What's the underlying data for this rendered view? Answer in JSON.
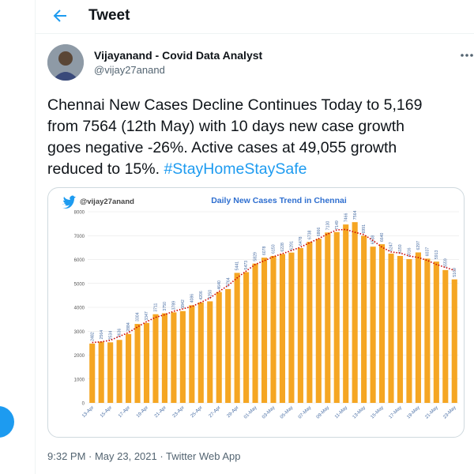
{
  "header": {
    "title": "Tweet"
  },
  "tweet": {
    "author_name": "Vijayanand - Covid Data Analyst",
    "author_handle": "@vijay27anand",
    "text_lines": [
      "Chennai New Cases Decline Continues Today to 5,169",
      "from 7564 (12th May) with 10 days new case growth",
      "goes negative -26%. Active cases at 49,055 growth",
      "reduced to 15%. "
    ],
    "hashtag": "#StayHomeStaySafe",
    "meta": "9:32 PM · May 23, 2021 · Twitter Web App"
  },
  "chart_data": {
    "type": "bar",
    "title": "Daily New Cases Trend in Chennai",
    "watermark": "@vijay27anand",
    "ylim": [
      0,
      8000
    ],
    "yticks": [
      0,
      1000,
      2000,
      3000,
      4000,
      5000,
      6000,
      7000,
      8000
    ],
    "grid": true,
    "bar_color": "#f5a623",
    "trend_color": "#cc0000",
    "categories": [
      "13-Apr",
      "14-Apr",
      "15-Apr",
      "16-Apr",
      "17-Apr",
      "18-Apr",
      "19-Apr",
      "20-Apr",
      "21-Apr",
      "22-Apr",
      "23-Apr",
      "24-Apr",
      "25-Apr",
      "26-Apr",
      "27-Apr",
      "28-Apr",
      "29-Apr",
      "30-Apr",
      "01-May",
      "02-May",
      "03-May",
      "04-May",
      "05-May",
      "06-May",
      "07-May",
      "08-May",
      "09-May",
      "10-May",
      "11-May",
      "12-May",
      "13-May",
      "14-May",
      "15-May",
      "16-May",
      "17-May",
      "18-May",
      "19-May",
      "20-May",
      "21-May",
      "22-May",
      "23-May"
    ],
    "x_tick_labels": [
      "13-Apr",
      "",
      "15-Apr",
      "",
      "17-Apr",
      "",
      "19-Apr",
      "",
      "21-Apr",
      "",
      "23-Apr",
      "",
      "25-Apr",
      "",
      "27-Apr",
      "",
      "29-Apr",
      "",
      "01-May",
      "",
      "03-May",
      "",
      "05-May",
      "",
      "07-May",
      "",
      "09-May",
      "",
      "11-May",
      "",
      "13-May",
      "",
      "15-May",
      "",
      "17-May",
      "",
      "19-May",
      "",
      "21-May",
      "",
      "23-May"
    ],
    "values": [
      2482,
      2564,
      2534,
      2636,
      2884,
      3304,
      3347,
      3711,
      3750,
      3789,
      3842,
      4086,
      4206,
      4250,
      4640,
      4764,
      5441,
      5473,
      5829,
      6078,
      6150,
      6228,
      6291,
      6478,
      6738,
      6866,
      7130,
      7149,
      7466,
      7564,
      6991,
      6538,
      6640,
      6247,
      6150,
      6016,
      6297,
      6037,
      5913,
      5559,
      5169
    ]
  }
}
